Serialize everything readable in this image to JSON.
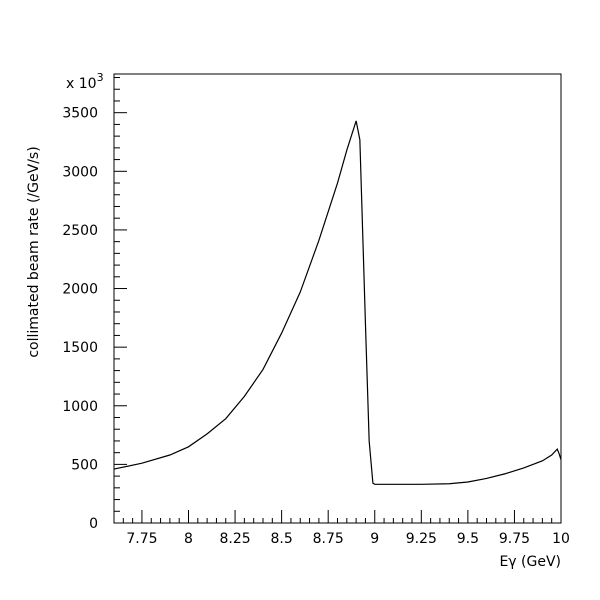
{
  "chart_data": {
    "type": "line",
    "title": "",
    "xlabel": "Eγ (GeV)",
    "ylabel": "collimated beam rate (/GeV/s)",
    "y_multiplier": "x 10",
    "y_multiplier_exponent": "3",
    "xlim": [
      7.6,
      10.0
    ],
    "ylim": [
      0,
      3830
    ],
    "x_ticks": [
      7.75,
      8,
      8.25,
      8.5,
      8.75,
      9,
      9.25,
      9.5,
      9.75,
      10
    ],
    "x_tick_labels": [
      "7.75",
      "8",
      "8.25",
      "8.5",
      "8.75",
      "9",
      "9.25",
      "9.5",
      "9.75",
      "10"
    ],
    "y_ticks": [
      0,
      500,
      1000,
      1500,
      2000,
      2500,
      3000,
      3500
    ],
    "y_tick_labels": [
      "0",
      "500",
      "1000",
      "1500",
      "2000",
      "2500",
      "3000",
      "3500"
    ],
    "grid": false,
    "legend": "none",
    "series": [
      {
        "color": "#000000",
        "x": [
          7.6,
          7.75,
          7.9,
          8.0,
          8.1,
          8.2,
          8.3,
          8.4,
          8.5,
          8.6,
          8.7,
          8.8,
          8.85,
          8.9,
          8.92,
          8.93,
          8.95,
          8.97,
          8.99,
          9.0,
          9.1,
          9.25,
          9.4,
          9.5,
          9.6,
          9.7,
          9.8,
          9.9,
          9.95,
          9.98,
          9.99,
          10.0
        ],
        "y": [
          460,
          510,
          580,
          650,
          760,
          890,
          1080,
          1310,
          1620,
          1970,
          2410,
          2900,
          3180,
          3430,
          3270,
          2750,
          1700,
          700,
          340,
          330,
          330,
          330,
          335,
          350,
          380,
          420,
          470,
          530,
          580,
          630,
          590,
          540
        ]
      }
    ]
  }
}
